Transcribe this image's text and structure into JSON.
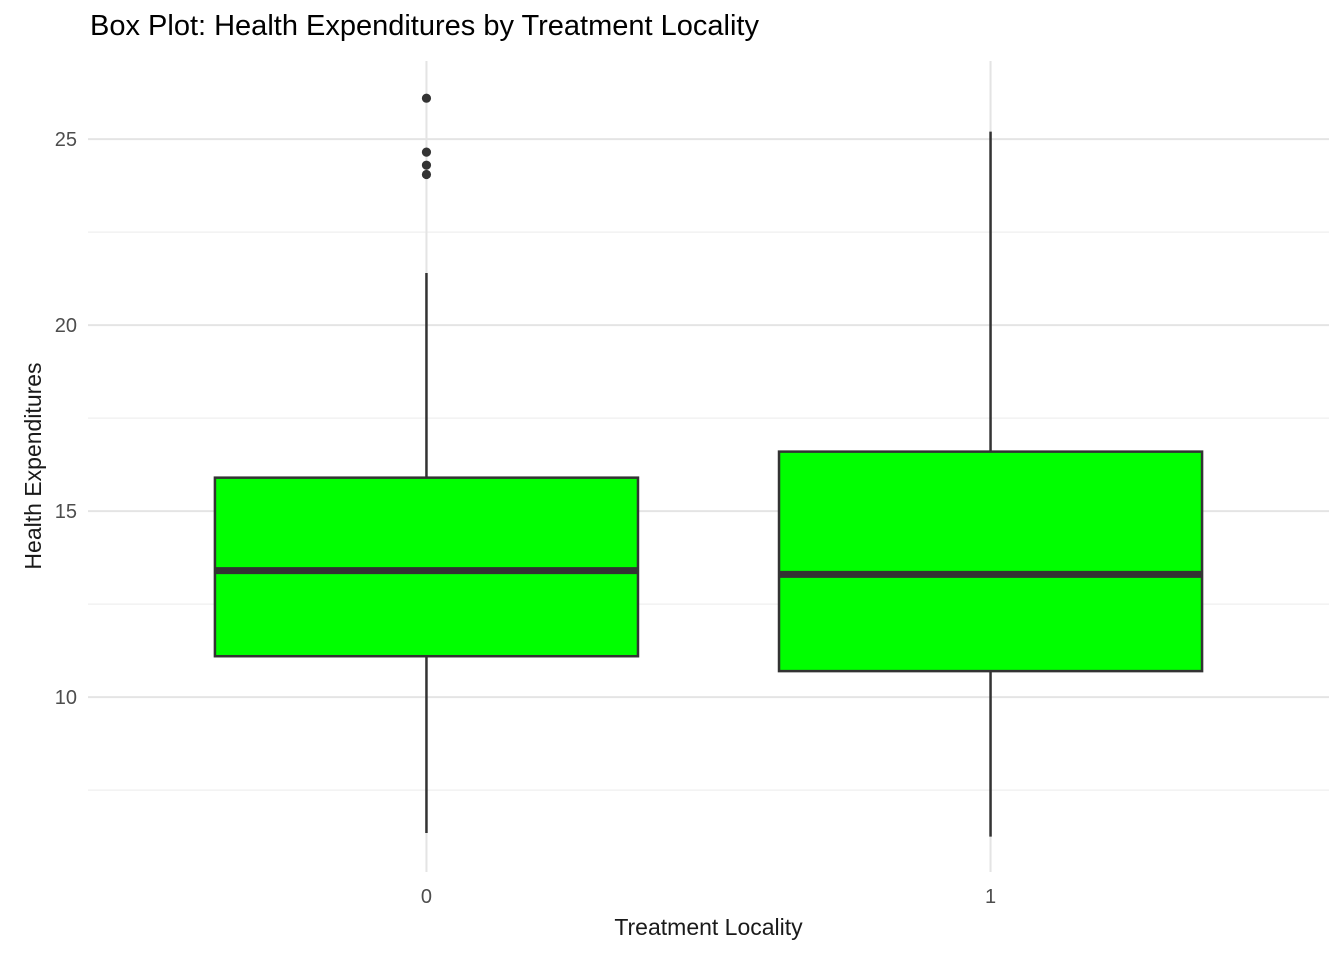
{
  "chart_data": {
    "type": "boxplot",
    "title": "Box Plot: Health Expenditures by Treatment Locality",
    "xlabel": "Treatment Locality",
    "ylabel": "Health Expenditures",
    "categories": [
      "0",
      "1"
    ],
    "y_ticks": [
      10,
      15,
      20,
      25
    ],
    "y_minor_ticks": [
      7.5,
      12.5,
      17.5,
      22.5
    ],
    "ylim": [
      5.3,
      27.1
    ],
    "grid": "on",
    "legend": "none",
    "colors": {
      "box_fill": "#00FF00",
      "box_stroke": "#333333",
      "median": "#333333",
      "whisker": "#333333",
      "outlier": "#333333",
      "grid_major": "#E4E4E4",
      "grid_minor": "#EFEFEF",
      "tick_label": "#4D4D4D",
      "background": "#FFFFFF"
    },
    "series": [
      {
        "category": "0",
        "whisker_low": 6.35,
        "q1": 11.1,
        "median": 13.4,
        "q3": 15.9,
        "whisker_high": 21.4,
        "outliers": [
          24.05,
          24.3,
          24.65,
          26.1
        ]
      },
      {
        "category": "1",
        "whisker_low": 6.25,
        "q1": 10.7,
        "median": 13.3,
        "q3": 16.6,
        "whisker_high": 25.2,
        "outliers": []
      }
    ]
  }
}
